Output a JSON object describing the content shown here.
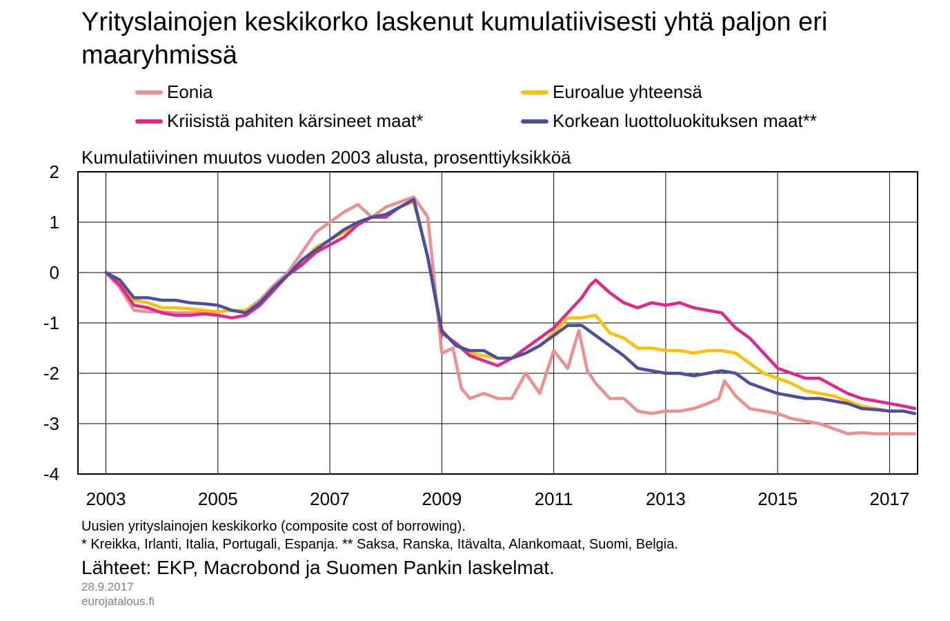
{
  "title": "Yrityslainojen keskikorko laskenut kumulatiivisesti yhtä paljon eri maaryhmissä",
  "subtitle": "Kumulatiivinen muutos vuoden 2003 alusta, prosenttiyksikköä",
  "footnotes": [
    "Uusien yrityslainojen keskikorko (composite cost of borrowing).",
    "* Kreikka, Irlanti, Italia, Portugali, Espanja. ** Saksa, Ranska, Itävalta, Alankomaat, Suomi, Belgia."
  ],
  "sources": "Lähteet: EKP, Macrobond ja Suomen Pankin laskelmat.",
  "date": "28.9.2017",
  "site": "eurojatalous.fi",
  "colors": {
    "eonia": "#ee8f8f",
    "euro": "#ffc000",
    "crisis": "#e0288a",
    "high": "#4a4fa0"
  },
  "chart_data": {
    "type": "line",
    "xlim": [
      2002.5,
      2017.5
    ],
    "ylim": [
      -4,
      2
    ],
    "x_ticks": [
      "2003",
      "2005",
      "2007",
      "2009",
      "2011",
      "2013",
      "2015",
      "2017"
    ],
    "y_ticks": [
      "2",
      "1",
      "0",
      "-1",
      "-2",
      "-3",
      "-4"
    ],
    "grid": true,
    "legend_position": "top",
    "series": [
      {
        "name": "Eonia",
        "color": "#ee8f8f",
        "x": [
          2003.0,
          2003.25,
          2003.5,
          2003.75,
          2004.0,
          2004.25,
          2004.5,
          2004.75,
          2005.0,
          2005.25,
          2005.5,
          2005.75,
          2006.0,
          2006.25,
          2006.5,
          2006.75,
          2007.0,
          2007.25,
          2007.5,
          2007.75,
          2008.0,
          2008.25,
          2008.5,
          2008.75,
          2009.0,
          2009.2,
          2009.35,
          2009.5,
          2009.75,
          2010.0,
          2010.25,
          2010.5,
          2010.75,
          2011.0,
          2011.25,
          2011.45,
          2011.6,
          2011.75,
          2012.0,
          2012.25,
          2012.5,
          2012.75,
          2013.0,
          2013.25,
          2013.5,
          2013.75,
          2013.95,
          2014.05,
          2014.25,
          2014.5,
          2014.75,
          2015.0,
          2015.25,
          2015.5,
          2015.75,
          2016.0,
          2016.25,
          2016.5,
          2016.75,
          2017.0,
          2017.25,
          2017.45
        ],
        "values": [
          0.0,
          -0.3,
          -0.75,
          -0.78,
          -0.78,
          -0.8,
          -0.8,
          -0.8,
          -0.78,
          -0.75,
          -0.75,
          -0.55,
          -0.25,
          0.0,
          0.4,
          0.8,
          1.0,
          1.2,
          1.35,
          1.1,
          1.3,
          1.4,
          1.5,
          1.1,
          -1.6,
          -1.5,
          -2.3,
          -2.5,
          -2.4,
          -2.5,
          -2.5,
          -2.0,
          -2.4,
          -1.55,
          -1.9,
          -1.15,
          -1.95,
          -2.2,
          -2.5,
          -2.5,
          -2.75,
          -2.8,
          -2.75,
          -2.75,
          -2.7,
          -2.6,
          -2.5,
          -2.15,
          -2.45,
          -2.7,
          -2.75,
          -2.8,
          -2.9,
          -2.95,
          -3.0,
          -3.1,
          -3.2,
          -3.18,
          -3.2,
          -3.2,
          -3.2,
          -3.2
        ]
      },
      {
        "name": "Euroalue yhteensä",
        "color": "#ffc000",
        "x": [
          2003.0,
          2003.25,
          2003.5,
          2003.75,
          2004.0,
          2004.25,
          2004.5,
          2004.75,
          2005.0,
          2005.25,
          2005.5,
          2005.75,
          2006.0,
          2006.25,
          2006.5,
          2006.75,
          2007.0,
          2007.25,
          2007.5,
          2007.75,
          2008.0,
          2008.25,
          2008.5,
          2008.75,
          2009.0,
          2009.25,
          2009.5,
          2009.75,
          2010.0,
          2010.25,
          2010.5,
          2010.75,
          2011.0,
          2011.25,
          2011.5,
          2011.75,
          2012.0,
          2012.25,
          2012.5,
          2012.75,
          2013.0,
          2013.25,
          2013.5,
          2013.75,
          2014.0,
          2014.25,
          2014.5,
          2014.75,
          2015.0,
          2015.25,
          2015.5,
          2015.75,
          2016.0,
          2016.25,
          2016.5,
          2016.75,
          2017.0,
          2017.25,
          2017.45
        ],
        "values": [
          0.0,
          -0.2,
          -0.55,
          -0.6,
          -0.7,
          -0.7,
          -0.72,
          -0.75,
          -0.78,
          -0.75,
          -0.75,
          -0.6,
          -0.3,
          -0.05,
          0.2,
          0.5,
          0.65,
          0.8,
          0.95,
          1.1,
          1.15,
          1.3,
          1.4,
          0.3,
          -1.2,
          -1.4,
          -1.6,
          -1.65,
          -1.7,
          -1.7,
          -1.6,
          -1.45,
          -1.2,
          -0.9,
          -0.9,
          -0.85,
          -1.2,
          -1.3,
          -1.5,
          -1.5,
          -1.55,
          -1.55,
          -1.6,
          -1.55,
          -1.55,
          -1.6,
          -1.8,
          -2.0,
          -2.1,
          -2.2,
          -2.35,
          -2.4,
          -2.45,
          -2.55,
          -2.65,
          -2.7,
          -2.75,
          -2.75,
          -2.8
        ]
      },
      {
        "name": "Kriisistä pahiten kärsineet maat*",
        "color": "#e0288a",
        "x": [
          2003.0,
          2003.25,
          2003.5,
          2003.75,
          2004.0,
          2004.25,
          2004.5,
          2004.75,
          2005.0,
          2005.25,
          2005.5,
          2005.75,
          2006.0,
          2006.25,
          2006.5,
          2006.75,
          2007.0,
          2007.25,
          2007.5,
          2007.75,
          2008.0,
          2008.25,
          2008.5,
          2008.75,
          2009.0,
          2009.25,
          2009.5,
          2009.75,
          2010.0,
          2010.25,
          2010.5,
          2010.75,
          2011.0,
          2011.25,
          2011.5,
          2011.65,
          2011.75,
          2012.0,
          2012.25,
          2012.5,
          2012.75,
          2013.0,
          2013.25,
          2013.5,
          2013.75,
          2014.0,
          2014.25,
          2014.5,
          2014.75,
          2015.0,
          2015.25,
          2015.5,
          2015.75,
          2016.0,
          2016.25,
          2016.5,
          2016.75,
          2017.0,
          2017.25,
          2017.45
        ],
        "values": [
          0.0,
          -0.25,
          -0.65,
          -0.7,
          -0.8,
          -0.85,
          -0.85,
          -0.82,
          -0.85,
          -0.9,
          -0.85,
          -0.65,
          -0.35,
          -0.05,
          0.15,
          0.4,
          0.55,
          0.7,
          0.95,
          1.1,
          1.1,
          1.3,
          1.45,
          0.3,
          -1.2,
          -1.4,
          -1.65,
          -1.75,
          -1.85,
          -1.7,
          -1.5,
          -1.3,
          -1.1,
          -0.8,
          -0.5,
          -0.25,
          -0.15,
          -0.4,
          -0.6,
          -0.7,
          -0.6,
          -0.65,
          -0.6,
          -0.7,
          -0.75,
          -0.8,
          -1.1,
          -1.3,
          -1.6,
          -1.9,
          -2.0,
          -2.1,
          -2.1,
          -2.25,
          -2.4,
          -2.5,
          -2.55,
          -2.6,
          -2.65,
          -2.7
        ]
      },
      {
        "name": "Korkean luottoluokituksen maat**",
        "color": "#4a4fa0",
        "x": [
          2003.0,
          2003.25,
          2003.5,
          2003.75,
          2004.0,
          2004.25,
          2004.5,
          2004.75,
          2005.0,
          2005.25,
          2005.5,
          2005.75,
          2006.0,
          2006.25,
          2006.5,
          2006.75,
          2007.0,
          2007.25,
          2007.5,
          2007.75,
          2008.0,
          2008.25,
          2008.5,
          2008.75,
          2009.0,
          2009.25,
          2009.5,
          2009.75,
          2010.0,
          2010.25,
          2010.5,
          2010.75,
          2011.0,
          2011.25,
          2011.5,
          2011.75,
          2012.0,
          2012.25,
          2012.5,
          2012.75,
          2013.0,
          2013.25,
          2013.5,
          2013.75,
          2014.0,
          2014.25,
          2014.5,
          2014.75,
          2015.0,
          2015.25,
          2015.5,
          2015.75,
          2016.0,
          2016.25,
          2016.5,
          2016.75,
          2017.0,
          2017.25,
          2017.45
        ],
        "values": [
          0.0,
          -0.15,
          -0.5,
          -0.5,
          -0.55,
          -0.55,
          -0.6,
          -0.62,
          -0.65,
          -0.75,
          -0.8,
          -0.6,
          -0.3,
          -0.05,
          0.25,
          0.45,
          0.65,
          0.85,
          1.0,
          1.1,
          1.15,
          1.3,
          1.45,
          0.3,
          -1.15,
          -1.45,
          -1.55,
          -1.55,
          -1.7,
          -1.7,
          -1.6,
          -1.45,
          -1.25,
          -1.05,
          -1.05,
          -1.25,
          -1.45,
          -1.65,
          -1.9,
          -1.95,
          -2.0,
          -2.0,
          -2.05,
          -2.0,
          -1.95,
          -2.0,
          -2.2,
          -2.3,
          -2.4,
          -2.45,
          -2.5,
          -2.5,
          -2.55,
          -2.6,
          -2.7,
          -2.72,
          -2.75,
          -2.75,
          -2.8
        ]
      }
    ]
  }
}
